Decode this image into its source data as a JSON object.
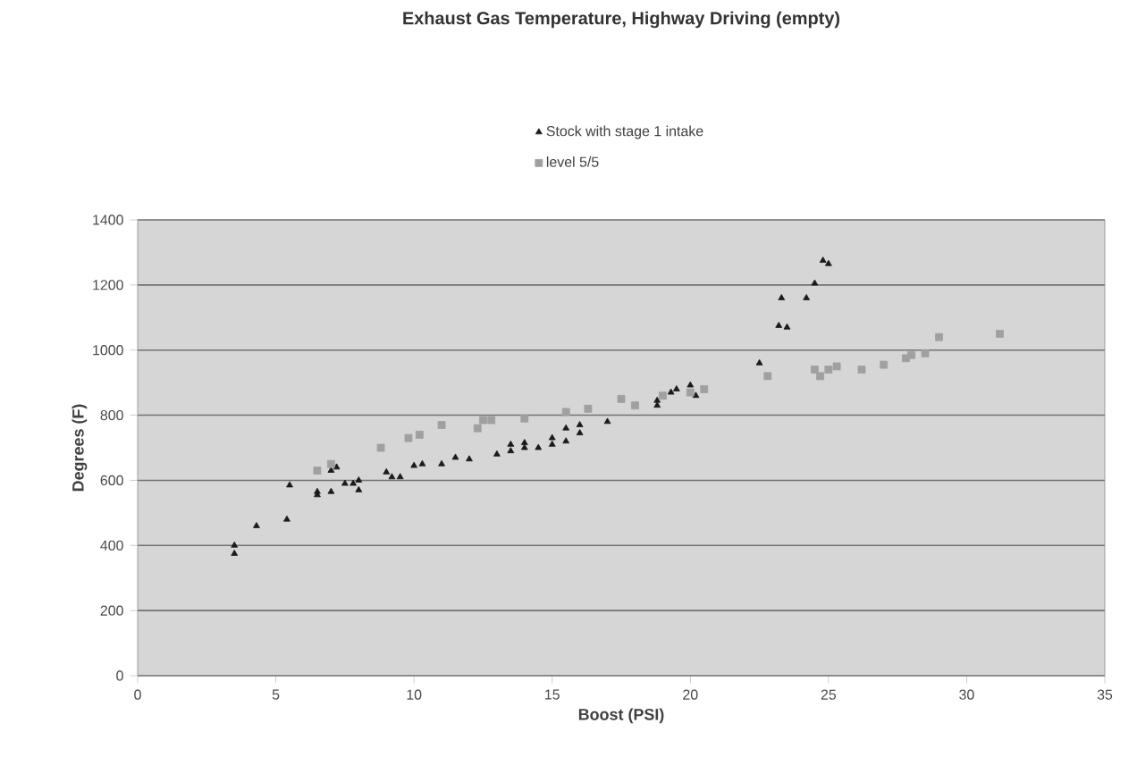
{
  "chart_data": {
    "type": "scatter",
    "title": "Exhaust Gas Temperature, Highway Driving (empty)",
    "xlabel": "Boost (PSI)",
    "ylabel": "Degrees (F)",
    "xlim": [
      0,
      35
    ],
    "xticks": [
      0,
      5,
      10,
      15,
      20,
      25,
      30,
      35
    ],
    "ylim": [
      0,
      1400
    ],
    "yticks": [
      0,
      200,
      400,
      600,
      800,
      1000,
      1200,
      1400
    ],
    "grid": "y",
    "legend": "top",
    "series": [
      {
        "name": "Stock with stage 1 intake",
        "color": "#1a1a1a",
        "marker": "triangle",
        "x": [
          3.5,
          3.5,
          4.3,
          5.4,
          5.5,
          6.5,
          6.5,
          7,
          7,
          7.2,
          7.5,
          7.8,
          8,
          8,
          9,
          9.2,
          9.5,
          10,
          10.3,
          11,
          11.5,
          12,
          13,
          13.5,
          13.5,
          14,
          14,
          14.5,
          15,
          15,
          15.5,
          15.5,
          16,
          16,
          17,
          18.8,
          18.8,
          19.3,
          19.5,
          20.2,
          20,
          22.5,
          23.2,
          23.3,
          23.5,
          24.2,
          24.5,
          24.8,
          25
        ],
        "values": [
          375,
          400,
          460,
          480,
          585,
          555,
          565,
          565,
          630,
          640,
          590,
          590,
          570,
          600,
          625,
          610,
          610,
          645,
          650,
          650,
          670,
          665,
          680,
          690,
          710,
          700,
          715,
          700,
          710,
          730,
          720,
          760,
          745,
          770,
          780,
          830,
          845,
          870,
          880,
          860,
          892,
          960,
          1075,
          1160,
          1070,
          1160,
          1205,
          1275,
          1265
        ]
      },
      {
        "name": "level 5/5",
        "color": "#a0a0a0",
        "marker": "square",
        "x": [
          6.5,
          7,
          8.8,
          9.8,
          10.2,
          11,
          12.3,
          12.5,
          12.8,
          14,
          15.5,
          16.3,
          17.5,
          18,
          19,
          20,
          20.5,
          22.8,
          24.5,
          24.7,
          25,
          25.3,
          26.2,
          27,
          27.8,
          28,
          28.5,
          29,
          31.2
        ],
        "values": [
          630,
          650,
          700,
          730,
          740,
          770,
          760,
          785,
          785,
          790,
          810,
          820,
          850,
          830,
          860,
          870,
          880,
          920,
          940,
          920,
          940,
          950,
          940,
          955,
          975,
          985,
          990,
          1040,
          1050
        ]
      }
    ]
  }
}
